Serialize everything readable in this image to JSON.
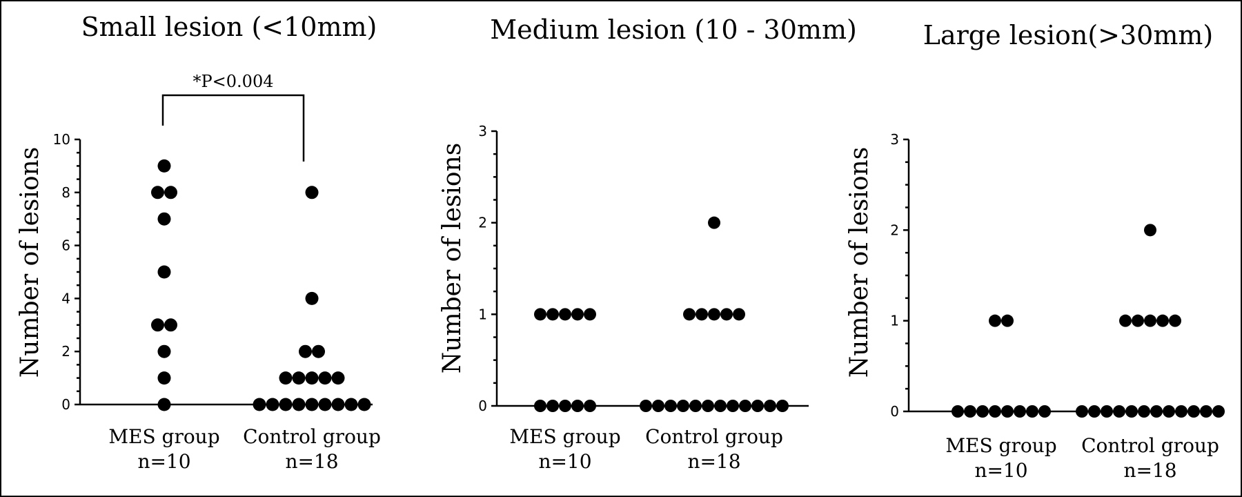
{
  "chart_data": [
    {
      "type": "scatter",
      "title": "Small lesion (<10mm)",
      "ylabel": "Number of lesions",
      "ylim": [
        0,
        10
      ],
      "yticks": [
        0,
        2,
        4,
        6,
        8,
        10
      ],
      "categories": [
        {
          "label": "MES group",
          "n": "n=10"
        },
        {
          "label": "Control group",
          "n": "n=18"
        }
      ],
      "series": [
        {
          "values": [
            9,
            8,
            8,
            7,
            5,
            3,
            3,
            2,
            1,
            0
          ]
        },
        {
          "values": [
            8,
            4,
            2,
            2,
            1,
            1,
            1,
            1,
            1,
            0,
            0,
            0,
            0,
            0,
            0,
            0,
            0,
            0
          ]
        }
      ],
      "annotation": "*P<0.004"
    },
    {
      "type": "scatter",
      "title": "Medium lesion (10 - 30mm)",
      "ylabel": "Number of lesions",
      "ylim": [
        0,
        3
      ],
      "yticks": [
        0,
        1,
        2,
        3
      ],
      "categories": [
        {
          "label": "MES group",
          "n": "n=10"
        },
        {
          "label": "Control group",
          "n": "n=18"
        }
      ],
      "series": [
        {
          "values": [
            1,
            1,
            1,
            1,
            1,
            0,
            0,
            0,
            0,
            0
          ]
        },
        {
          "values": [
            2,
            1,
            1,
            1,
            1,
            1,
            0,
            0,
            0,
            0,
            0,
            0,
            0,
            0,
            0,
            0,
            0,
            0
          ]
        }
      ]
    },
    {
      "type": "scatter",
      "title": "Large lesion(>30mm)",
      "ylabel": "Number of lesions",
      "ylim": [
        0,
        3
      ],
      "yticks": [
        0,
        1,
        2,
        3
      ],
      "categories": [
        {
          "label": "MES group",
          "n": "n=10"
        },
        {
          "label": "Control group",
          "n": "n=18"
        }
      ],
      "series": [
        {
          "values": [
            1,
            1,
            0,
            0,
            0,
            0,
            0,
            0,
            0,
            0
          ]
        },
        {
          "values": [
            2,
            1,
            1,
            1,
            1,
            1,
            0,
            0,
            0,
            0,
            0,
            0,
            0,
            0,
            0,
            0,
            0,
            0
          ]
        }
      ]
    }
  ]
}
